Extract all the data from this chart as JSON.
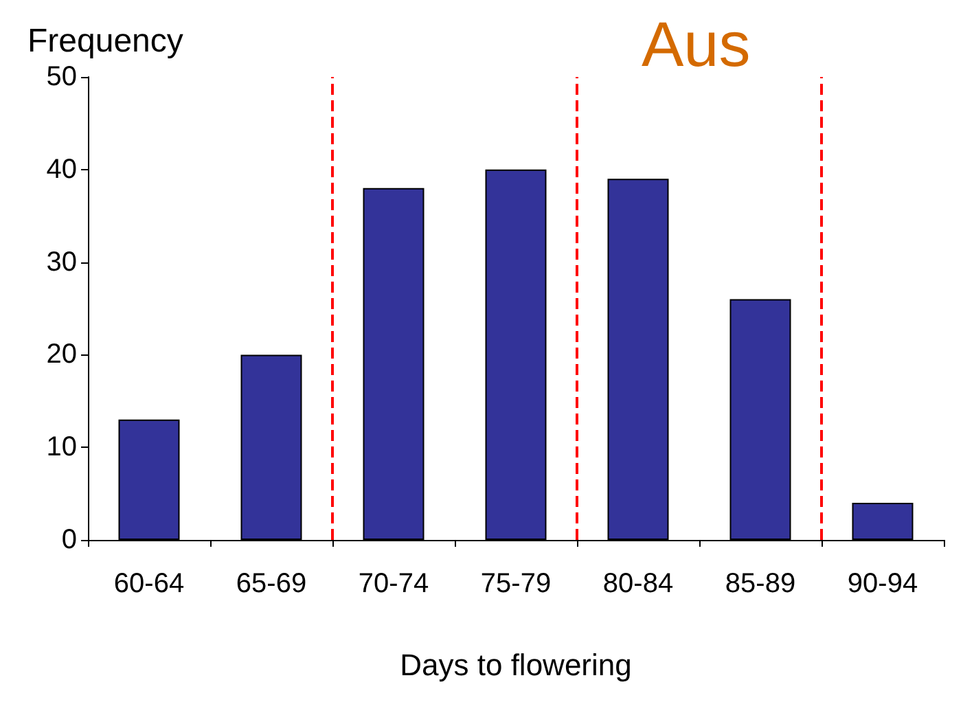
{
  "chart_data": {
    "type": "bar",
    "title": "Aus",
    "xlabel": "Days to flowering",
    "ylabel": "Frequency",
    "categories": [
      "60-64",
      "65-69",
      "70-74",
      "75-79",
      "80-84",
      "85-89",
      "90-94"
    ],
    "values": [
      13,
      20,
      38,
      40,
      39,
      26,
      4
    ],
    "color": "#333399",
    "ylim": [
      0,
      50
    ],
    "yticks": [
      0,
      10,
      20,
      30,
      40,
      50
    ],
    "grid": false
  }
}
